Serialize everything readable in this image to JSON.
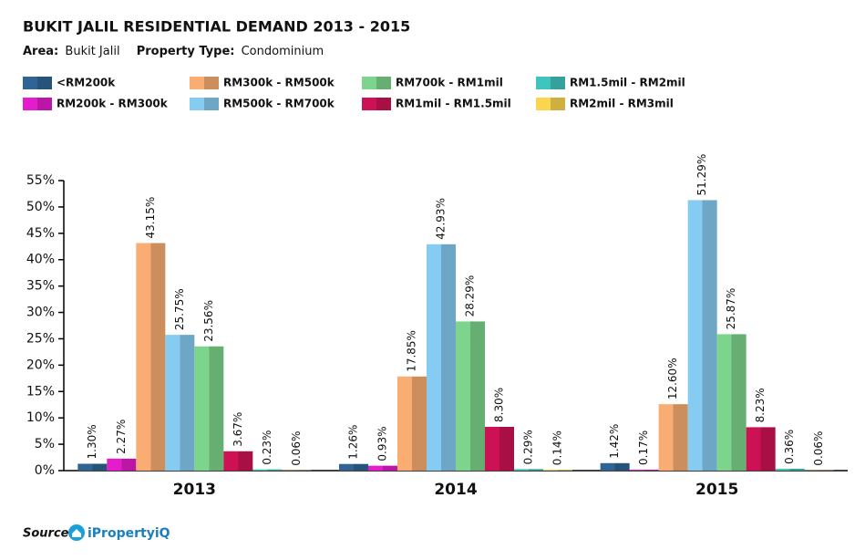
{
  "chart_data": {
    "type": "bar",
    "title": "BUKIT JALIL RESIDENTIAL DEMAND 2013 - 2015",
    "area_label": "Area:",
    "area": "Bukit Jalil",
    "property_type_label": "Property Type:",
    "property_type": "Condominium",
    "source_label": "Source:",
    "source": "iPropertyiQ",
    "categories": [
      "2013",
      "2014",
      "2015"
    ],
    "series": [
      {
        "name": "<RM200k",
        "color": "#2f6494",
        "values": [
          1.3,
          1.26,
          1.42
        ],
        "value_labels": [
          "1.30%",
          "1.26%",
          "1.42%"
        ]
      },
      {
        "name": "RM200k - RM300k",
        "color": "#e41ccc",
        "values": [
          2.27,
          0.93,
          0.17
        ],
        "value_labels": [
          "2.27%",
          "0.93%",
          "0.17%"
        ]
      },
      {
        "name": "RM300k - RM500k",
        "color": "#f9ad72",
        "values": [
          43.15,
          17.85,
          12.6
        ],
        "value_labels": [
          "43.15%",
          "17.85%",
          "12.60%"
        ]
      },
      {
        "name": "RM500k - RM700k",
        "color": "#86cbf2",
        "values": [
          25.75,
          42.93,
          51.29
        ],
        "value_labels": [
          "25.75%",
          "42.93%",
          "51.29%"
        ]
      },
      {
        "name": "RM700k - RM1mil",
        "color": "#7dd48c",
        "values": [
          23.56,
          28.29,
          25.87
        ],
        "value_labels": [
          "23.56%",
          "28.29%",
          "25.87%"
        ]
      },
      {
        "name": "RM1mil - RM1.5mil",
        "color": "#cc1254",
        "values": [
          3.67,
          8.3,
          8.23
        ],
        "value_labels": [
          "3.67%",
          "8.30%",
          "8.23%"
        ]
      },
      {
        "name": "RM1.5mil - RM2mil",
        "color": "#3fc4c0",
        "values": [
          0.23,
          0.29,
          0.36
        ],
        "value_labels": [
          "0.23%",
          "0.29%",
          "0.36%"
        ]
      },
      {
        "name": "RM2mil - RM3mil",
        "color": "#fcd54e",
        "values": [
          0.06,
          0.14,
          0.06
        ],
        "value_labels": [
          "0.06%",
          "0.14%",
          "0.06%"
        ]
      }
    ],
    "ylim": [
      0,
      55
    ],
    "yticks": [
      {
        "value": 0,
        "label": "0%"
      },
      {
        "value": 5,
        "label": "5%"
      },
      {
        "value": 10,
        "label": "10%"
      },
      {
        "value": 15,
        "label": "15%"
      },
      {
        "value": 20,
        "label": "20%"
      },
      {
        "value": 25,
        "label": "25%"
      },
      {
        "value": 30,
        "label": "30%"
      },
      {
        "value": 35,
        "label": "35%"
      },
      {
        "value": 40,
        "label": "40%"
      },
      {
        "value": 45,
        "label": "45%"
      },
      {
        "value": 50,
        "label": "50%"
      },
      {
        "value": 55,
        "label": "55%"
      }
    ],
    "grid": false
  }
}
